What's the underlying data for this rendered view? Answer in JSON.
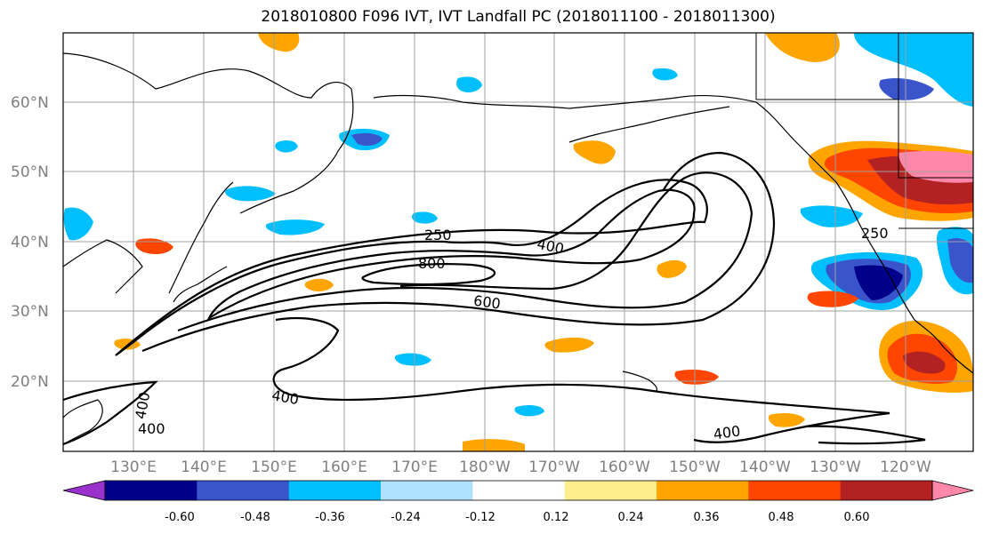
{
  "title": "2018010800 F096 IVT, IVT Landfall PC (2018011100 - 2018011300)",
  "lat_labels": [
    "60°N",
    "50°N",
    "40°N",
    "30°N",
    "20°N"
  ],
  "lon_labels": [
    "130°E",
    "140°E",
    "150°E",
    "160°E",
    "170°E",
    "180°W",
    "170°W",
    "160°W",
    "150°W",
    "140°W",
    "130°W",
    "120°W"
  ],
  "contour_labels": [
    "250",
    "400",
    "800",
    "600",
    "400",
    "400",
    "400",
    "400",
    "250"
  ],
  "colorbar": {
    "colors": [
      "#9932CC",
      "#00008B",
      "#3A55CC",
      "#00BFFF",
      "#B0E2FF",
      "#FFFFFF",
      "#FFEC8B",
      "#FFA500",
      "#FF4500",
      "#B22222",
      "#FF88AA"
    ],
    "tick_labels": [
      "-0.60",
      "-0.48",
      "-0.36",
      "-0.24",
      "-0.12",
      "0.12",
      "0.24",
      "0.36",
      "0.48",
      "0.60"
    ]
  }
}
